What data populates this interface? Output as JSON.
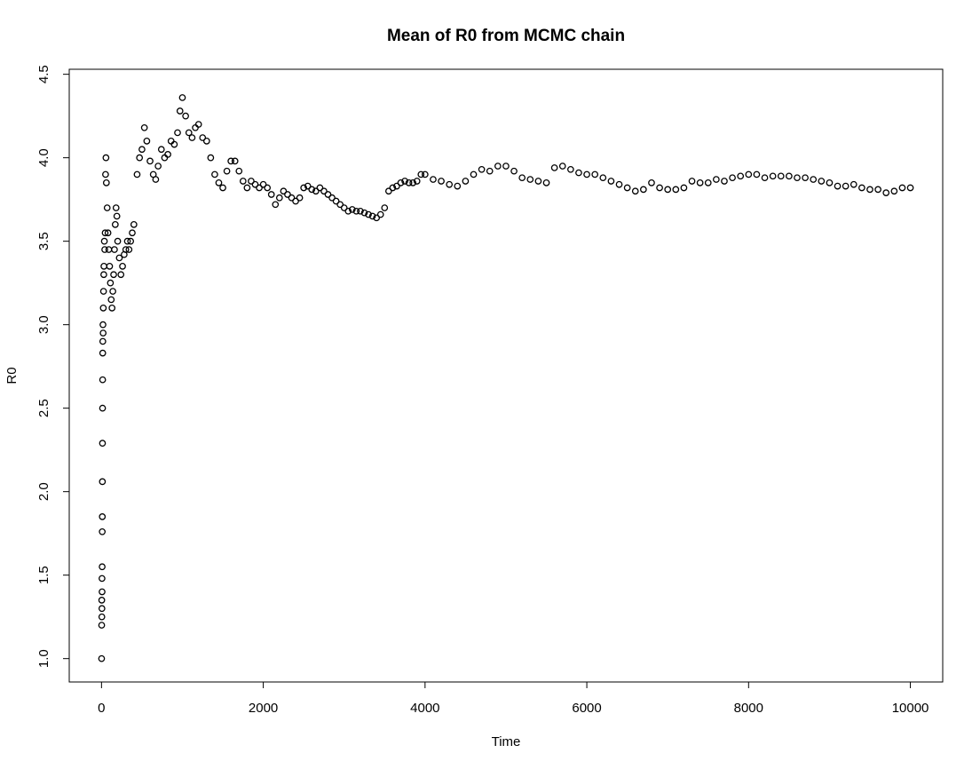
{
  "chart_data": {
    "type": "scatter",
    "title": "Mean of R0 from MCMC chain",
    "x_label": "Time",
    "y_label": "R0",
    "xlim": [
      -399,
      10400
    ],
    "ylim": [
      0.86,
      4.53
    ],
    "xticks": [
      0,
      2000,
      4000,
      6000,
      8000,
      10000
    ],
    "yticks": [
      {
        "value": 1,
        "label": "1.0"
      },
      1.5,
      {
        "value": 2,
        "label": "2.0"
      },
      2.5,
      {
        "value": 3,
        "label": "3.0"
      },
      3.5,
      {
        "value": 4,
        "label": "4.0"
      },
      4.5
    ],
    "color": "#000000",
    "x": [
      1,
      2,
      3,
      4,
      5,
      6,
      7,
      8,
      9,
      10,
      11,
      12,
      13,
      14,
      15,
      16,
      18,
      20,
      22,
      25,
      28,
      30,
      35,
      40,
      45,
      50,
      55,
      60,
      70,
      80,
      90,
      100,
      110,
      120,
      130,
      140,
      150,
      160,
      170,
      180,
      190,
      200,
      220,
      240,
      260,
      280,
      300,
      320,
      340,
      360,
      380,
      400,
      440,
      470,
      500,
      530,
      560,
      600,
      640,
      670,
      700,
      740,
      780,
      820,
      860,
      900,
      940,
      970,
      1000,
      1040,
      1080,
      1120,
      1160,
      1200,
      1250,
      1300,
      1350,
      1400,
      1450,
      1500,
      1550,
      1600,
      1650,
      1700,
      1750,
      1800,
      1850,
      1900,
      1950,
      2000,
      2050,
      2100,
      2150,
      2200,
      2250,
      2300,
      2350,
      2400,
      2450,
      2500,
      2550,
      2600,
      2650,
      2700,
      2750,
      2800,
      2850,
      2900,
      2950,
      3000,
      3050,
      3100,
      3150,
      3200,
      3250,
      3300,
      3350,
      3400,
      3450,
      3500,
      3550,
      3600,
      3650,
      3700,
      3750,
      3800,
      3850,
      3900,
      3950,
      4000,
      4100,
      4200,
      4300,
      4400,
      4500,
      4600,
      4700,
      4800,
      4900,
      5000,
      5100,
      5200,
      5300,
      5400,
      5500,
      5600,
      5700,
      5800,
      5900,
      6000,
      6100,
      6200,
      6300,
      6400,
      6500,
      6600,
      6700,
      6800,
      6900,
      7000,
      7100,
      7200,
      7300,
      7400,
      7500,
      7600,
      7700,
      7800,
      7900,
      8000,
      8100,
      8200,
      8300,
      8400,
      8500,
      8600,
      8700,
      8800,
      8900,
      9000,
      9100,
      9200,
      9300,
      9400,
      9500,
      9600,
      9700,
      9800,
      9900,
      10000
    ],
    "values": [
      1.0,
      1.2,
      1.35,
      1.25,
      1.3,
      1.48,
      1.4,
      1.55,
      1.76,
      1.85,
      2.06,
      2.29,
      2.5,
      2.67,
      2.83,
      2.9,
      3.0,
      2.95,
      3.1,
      3.2,
      3.3,
      3.35,
      3.5,
      3.45,
      3.55,
      3.9,
      4.0,
      3.85,
      3.7,
      3.55,
      3.45,
      3.35,
      3.25,
      3.15,
      3.1,
      3.2,
      3.3,
      3.45,
      3.6,
      3.7,
      3.65,
      3.5,
      3.4,
      3.3,
      3.35,
      3.42,
      3.45,
      3.5,
      3.45,
      3.5,
      3.55,
      3.6,
      3.9,
      4.0,
      4.05,
      4.18,
      4.1,
      3.98,
      3.9,
      3.87,
      3.95,
      4.05,
      4.0,
      4.02,
      4.1,
      4.08,
      4.15,
      4.28,
      4.36,
      4.25,
      4.15,
      4.12,
      4.18,
      4.2,
      4.12,
      4.1,
      4.0,
      3.9,
      3.85,
      3.82,
      3.92,
      3.98,
      3.98,
      3.92,
      3.86,
      3.82,
      3.86,
      3.84,
      3.82,
      3.84,
      3.82,
      3.78,
      3.72,
      3.76,
      3.8,
      3.78,
      3.76,
      3.74,
      3.76,
      3.82,
      3.83,
      3.81,
      3.8,
      3.82,
      3.8,
      3.78,
      3.76,
      3.74,
      3.72,
      3.7,
      3.68,
      3.69,
      3.68,
      3.68,
      3.67,
      3.66,
      3.65,
      3.64,
      3.66,
      3.7,
      3.8,
      3.82,
      3.83,
      3.85,
      3.86,
      3.85,
      3.85,
      3.86,
      3.9,
      3.9,
      3.87,
      3.86,
      3.84,
      3.83,
      3.86,
      3.9,
      3.93,
      3.92,
      3.95,
      3.95,
      3.92,
      3.88,
      3.87,
      3.86,
      3.85,
      3.94,
      3.95,
      3.93,
      3.91,
      3.9,
      3.9,
      3.88,
      3.86,
      3.84,
      3.82,
      3.8,
      3.81,
      3.85,
      3.82,
      3.81,
      3.81,
      3.82,
      3.86,
      3.85,
      3.85,
      3.87,
      3.86,
      3.88,
      3.89,
      3.9,
      3.9,
      3.88,
      3.89,
      3.89,
      3.89,
      3.88,
      3.88,
      3.87,
      3.86,
      3.85,
      3.83,
      3.83,
      3.84,
      3.82,
      3.81,
      3.81,
      3.79,
      3.8,
      3.82,
      3.82
    ]
  }
}
